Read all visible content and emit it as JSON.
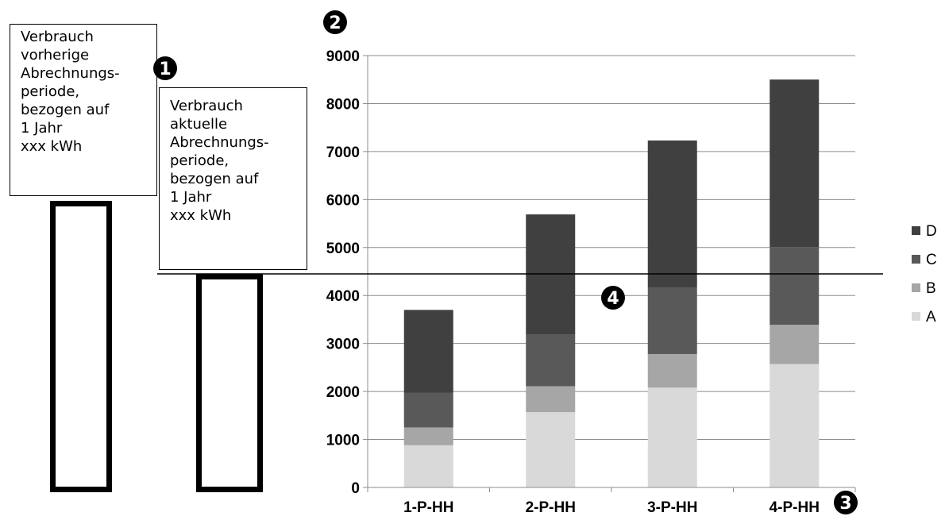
{
  "boxes": {
    "previous": {
      "lines": [
        "Verbrauch",
        "vorherige",
        "Abrechnungs-",
        "periode,",
        "bezogen auf",
        "1 Jahr",
        "xxx kWh"
      ]
    },
    "current": {
      "lines": [
        "Verbrauch",
        "aktuelle",
        "Abrechnungs-",
        "periode,",
        "bezogen auf",
        "1 Jahr",
        "xxx kWh"
      ]
    }
  },
  "markers": [
    "1",
    "2",
    "3",
    "4"
  ],
  "colors": {
    "A": "#d9d9d9",
    "B": "#a6a6a6",
    "C": "#595959",
    "D": "#404040",
    "grid": "#8c8c8c",
    "reference_line": "#000000"
  },
  "chart_data": {
    "type": "bar",
    "stacked": true,
    "categories": [
      "1-P-HH",
      "2-P-HH",
      "3-P-HH",
      "4-P-HH"
    ],
    "series": [
      {
        "name": "A",
        "values": [
          880,
          1570,
          2080,
          2570
        ]
      },
      {
        "name": "B",
        "values": [
          370,
          540,
          700,
          820
        ]
      },
      {
        "name": "C",
        "values": [
          720,
          1070,
          1390,
          1620
        ]
      },
      {
        "name": "D",
        "values": [
          1730,
          2510,
          3060,
          3490
        ]
      }
    ],
    "y_ticks": [
      "0",
      "1000",
      "2000",
      "3000",
      "4000",
      "5000",
      "6000",
      "7000",
      "8000",
      "9000"
    ],
    "ylim": [
      0,
      9000
    ],
    "reference_line": 4450,
    "grid": true,
    "legend_position": "right",
    "legend_order": [
      "D",
      "C",
      "B",
      "A"
    ]
  }
}
